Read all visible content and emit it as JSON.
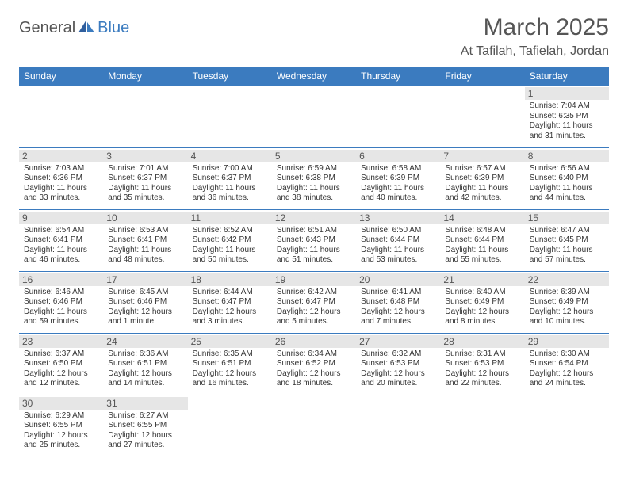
{
  "logo": {
    "text1": "General",
    "text2": "Blue"
  },
  "title": "March 2025",
  "location": "At Tafilah, Tafielah, Jordan",
  "colors": {
    "header_bg": "#3b7bbf",
    "header_text": "#ffffff",
    "daynum_bg": "#e6e6e6",
    "border": "#3b7bbf",
    "text": "#333333",
    "title_text": "#555555"
  },
  "day_headers": [
    "Sunday",
    "Monday",
    "Tuesday",
    "Wednesday",
    "Thursday",
    "Friday",
    "Saturday"
  ],
  "weeks": [
    [
      null,
      null,
      null,
      null,
      null,
      null,
      {
        "n": "1",
        "sunrise": "Sunrise: 7:04 AM",
        "sunset": "Sunset: 6:35 PM",
        "daylight": "Daylight: 11 hours and 31 minutes."
      }
    ],
    [
      {
        "n": "2",
        "sunrise": "Sunrise: 7:03 AM",
        "sunset": "Sunset: 6:36 PM",
        "daylight": "Daylight: 11 hours and 33 minutes."
      },
      {
        "n": "3",
        "sunrise": "Sunrise: 7:01 AM",
        "sunset": "Sunset: 6:37 PM",
        "daylight": "Daylight: 11 hours and 35 minutes."
      },
      {
        "n": "4",
        "sunrise": "Sunrise: 7:00 AM",
        "sunset": "Sunset: 6:37 PM",
        "daylight": "Daylight: 11 hours and 36 minutes."
      },
      {
        "n": "5",
        "sunrise": "Sunrise: 6:59 AM",
        "sunset": "Sunset: 6:38 PM",
        "daylight": "Daylight: 11 hours and 38 minutes."
      },
      {
        "n": "6",
        "sunrise": "Sunrise: 6:58 AM",
        "sunset": "Sunset: 6:39 PM",
        "daylight": "Daylight: 11 hours and 40 minutes."
      },
      {
        "n": "7",
        "sunrise": "Sunrise: 6:57 AM",
        "sunset": "Sunset: 6:39 PM",
        "daylight": "Daylight: 11 hours and 42 minutes."
      },
      {
        "n": "8",
        "sunrise": "Sunrise: 6:56 AM",
        "sunset": "Sunset: 6:40 PM",
        "daylight": "Daylight: 11 hours and 44 minutes."
      }
    ],
    [
      {
        "n": "9",
        "sunrise": "Sunrise: 6:54 AM",
        "sunset": "Sunset: 6:41 PM",
        "daylight": "Daylight: 11 hours and 46 minutes."
      },
      {
        "n": "10",
        "sunrise": "Sunrise: 6:53 AM",
        "sunset": "Sunset: 6:41 PM",
        "daylight": "Daylight: 11 hours and 48 minutes."
      },
      {
        "n": "11",
        "sunrise": "Sunrise: 6:52 AM",
        "sunset": "Sunset: 6:42 PM",
        "daylight": "Daylight: 11 hours and 50 minutes."
      },
      {
        "n": "12",
        "sunrise": "Sunrise: 6:51 AM",
        "sunset": "Sunset: 6:43 PM",
        "daylight": "Daylight: 11 hours and 51 minutes."
      },
      {
        "n": "13",
        "sunrise": "Sunrise: 6:50 AM",
        "sunset": "Sunset: 6:44 PM",
        "daylight": "Daylight: 11 hours and 53 minutes."
      },
      {
        "n": "14",
        "sunrise": "Sunrise: 6:48 AM",
        "sunset": "Sunset: 6:44 PM",
        "daylight": "Daylight: 11 hours and 55 minutes."
      },
      {
        "n": "15",
        "sunrise": "Sunrise: 6:47 AM",
        "sunset": "Sunset: 6:45 PM",
        "daylight": "Daylight: 11 hours and 57 minutes."
      }
    ],
    [
      {
        "n": "16",
        "sunrise": "Sunrise: 6:46 AM",
        "sunset": "Sunset: 6:46 PM",
        "daylight": "Daylight: 11 hours and 59 minutes."
      },
      {
        "n": "17",
        "sunrise": "Sunrise: 6:45 AM",
        "sunset": "Sunset: 6:46 PM",
        "daylight": "Daylight: 12 hours and 1 minute."
      },
      {
        "n": "18",
        "sunrise": "Sunrise: 6:44 AM",
        "sunset": "Sunset: 6:47 PM",
        "daylight": "Daylight: 12 hours and 3 minutes."
      },
      {
        "n": "19",
        "sunrise": "Sunrise: 6:42 AM",
        "sunset": "Sunset: 6:47 PM",
        "daylight": "Daylight: 12 hours and 5 minutes."
      },
      {
        "n": "20",
        "sunrise": "Sunrise: 6:41 AM",
        "sunset": "Sunset: 6:48 PM",
        "daylight": "Daylight: 12 hours and 7 minutes."
      },
      {
        "n": "21",
        "sunrise": "Sunrise: 6:40 AM",
        "sunset": "Sunset: 6:49 PM",
        "daylight": "Daylight: 12 hours and 8 minutes."
      },
      {
        "n": "22",
        "sunrise": "Sunrise: 6:39 AM",
        "sunset": "Sunset: 6:49 PM",
        "daylight": "Daylight: 12 hours and 10 minutes."
      }
    ],
    [
      {
        "n": "23",
        "sunrise": "Sunrise: 6:37 AM",
        "sunset": "Sunset: 6:50 PM",
        "daylight": "Daylight: 12 hours and 12 minutes."
      },
      {
        "n": "24",
        "sunrise": "Sunrise: 6:36 AM",
        "sunset": "Sunset: 6:51 PM",
        "daylight": "Daylight: 12 hours and 14 minutes."
      },
      {
        "n": "25",
        "sunrise": "Sunrise: 6:35 AM",
        "sunset": "Sunset: 6:51 PM",
        "daylight": "Daylight: 12 hours and 16 minutes."
      },
      {
        "n": "26",
        "sunrise": "Sunrise: 6:34 AM",
        "sunset": "Sunset: 6:52 PM",
        "daylight": "Daylight: 12 hours and 18 minutes."
      },
      {
        "n": "27",
        "sunrise": "Sunrise: 6:32 AM",
        "sunset": "Sunset: 6:53 PM",
        "daylight": "Daylight: 12 hours and 20 minutes."
      },
      {
        "n": "28",
        "sunrise": "Sunrise: 6:31 AM",
        "sunset": "Sunset: 6:53 PM",
        "daylight": "Daylight: 12 hours and 22 minutes."
      },
      {
        "n": "29",
        "sunrise": "Sunrise: 6:30 AM",
        "sunset": "Sunset: 6:54 PM",
        "daylight": "Daylight: 12 hours and 24 minutes."
      }
    ],
    [
      {
        "n": "30",
        "sunrise": "Sunrise: 6:29 AM",
        "sunset": "Sunset: 6:55 PM",
        "daylight": "Daylight: 12 hours and 25 minutes."
      },
      {
        "n": "31",
        "sunrise": "Sunrise: 6:27 AM",
        "sunset": "Sunset: 6:55 PM",
        "daylight": "Daylight: 12 hours and 27 minutes."
      },
      null,
      null,
      null,
      null,
      null
    ]
  ]
}
